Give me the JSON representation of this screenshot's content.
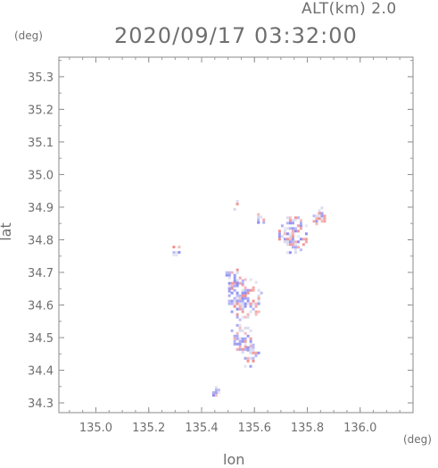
{
  "header": {
    "altitude": "ALT(km) 2.0",
    "timestamp": "2020/09/17 03:32:00"
  },
  "axes": {
    "y_unit": "(deg)",
    "x_unit": "(deg)",
    "y_label": "lat",
    "x_label": "lon"
  },
  "chart_data": {
    "type": "heatmap",
    "xlabel": "lon",
    "ylabel": "lat",
    "xlim": [
      134.86,
      136.2
    ],
    "ylim": [
      34.27,
      35.36
    ],
    "x_ticks": [
      "135.0",
      "135.2",
      "135.4",
      "135.6",
      "135.8",
      "136.0"
    ],
    "y_ticks": [
      "34.3",
      "34.4",
      "34.5",
      "34.6",
      "34.7",
      "34.8",
      "34.9",
      "35.0",
      "35.1",
      "35.2",
      "35.3"
    ],
    "colors": {
      "negative": "#8c8cf0",
      "positive": "#f08c8c",
      "neutral": "#d8d8ee"
    },
    "echo_regions": [
      {
        "lon": 135.56,
        "lat": 34.62,
        "r": 0.07
      },
      {
        "lon": 135.55,
        "lat": 34.5,
        "r": 0.05
      },
      {
        "lon": 135.58,
        "lat": 34.45,
        "r": 0.04
      },
      {
        "lon": 135.52,
        "lat": 34.68,
        "r": 0.04
      },
      {
        "lon": 135.74,
        "lat": 34.82,
        "r": 0.06
      },
      {
        "lon": 135.84,
        "lat": 34.88,
        "r": 0.03
      },
      {
        "lon": 135.3,
        "lat": 34.77,
        "r": 0.02
      },
      {
        "lon": 135.45,
        "lat": 34.34,
        "r": 0.02
      },
      {
        "lon": 135.52,
        "lat": 34.91,
        "r": 0.02
      },
      {
        "lon": 135.62,
        "lat": 34.87,
        "r": 0.02
      }
    ]
  }
}
